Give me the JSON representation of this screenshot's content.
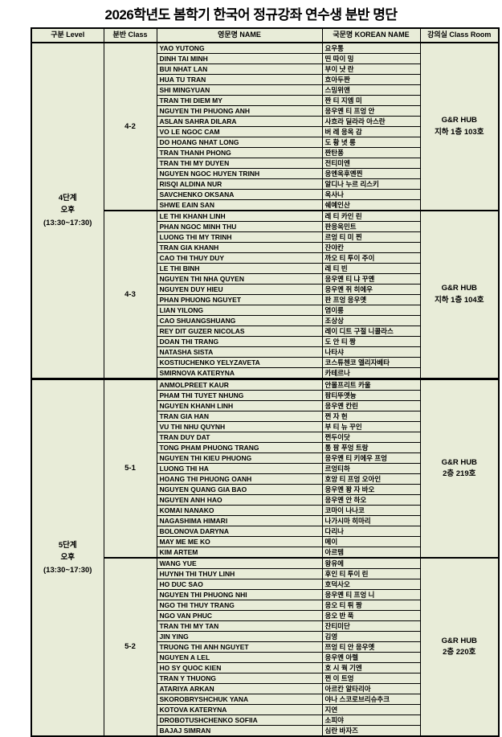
{
  "title": "2026학년도 봄학기 한국어 정규강좌 연수생 분반 명단",
  "colors": {
    "cell_background": "#e8ecd8",
    "border": "#000000",
    "text": "#000000"
  },
  "table": {
    "headers": [
      "구분 Level",
      "분반 Class",
      "영문명 NAME",
      "국문명 KOREAN NAME",
      "강의실 Class Room"
    ],
    "levels": [
      {
        "label_lines": [
          "4단계",
          "오후",
          "(13:30~17:30)"
        ],
        "classes": [
          {
            "class_label": "4-2",
            "room_lines": [
              "G&R HUB",
              "지하 1층 103호"
            ],
            "students": [
              {
                "name": "YAO YUTONG",
                "korean": "요우통"
              },
              {
                "name": "DINH TAI MINH",
                "korean": "띤 따이 밍"
              },
              {
                "name": "BUI NHAT LAN",
                "korean": "부이 냣 란"
              },
              {
                "name": "HUA TU TRAN",
                "korean": "흐아두짠"
              },
              {
                "name": "SHI MINGYUAN",
                "korean": "스밍위앤"
              },
              {
                "name": "TRAN THI DIEM MY",
                "korean": "짠 티 지엠 미"
              },
              {
                "name": "NGUYEN THI PHUONG ANH",
                "korean": "응우옌 티 프엉 안"
              },
              {
                "name": "ASLAN SAHRA DILARA",
                "korean": "사흐라 딜라라 아스란"
              },
              {
                "name": "VO LE NGOC CAM",
                "korean": "버 레 응옥 감"
              },
              {
                "name": "DO HOANG NHAT LONG",
                "korean": "도 황 녓 롱"
              },
              {
                "name": "TRAN THANH PHONG",
                "korean": "짠탄퐁"
              },
              {
                "name": "TRAN THI MY DUYEN",
                "korean": "전티미엔"
              },
              {
                "name": "NGUYEN NGOC HUYEN TRINH",
                "korean": "응엔옥후옌찐"
              },
              {
                "name": "RISQI ALDINA NUR",
                "korean": "알디나 누르 리스키"
              },
              {
                "name": "SAVCHENKO OKSANA",
                "korean": "옥사나"
              },
              {
                "name": "SHWE EAIN SAN",
                "korean": "쉐예인산"
              }
            ]
          },
          {
            "class_label": "4-3",
            "room_lines": [
              "G&R HUB",
              "지하 1층 104호"
            ],
            "students": [
              {
                "name": "LE THI KHANH LINH",
                "korean": "레 티 카인 린"
              },
              {
                "name": "PHAN NGOC MINH THU",
                "korean": "판응옥민트"
              },
              {
                "name": "LUONG THI MY TRINH",
                "korean": "르엉 티 미 찐"
              },
              {
                "name": "TRAN GIA KHANH",
                "korean": "잔야칸"
              },
              {
                "name": "CAO THI THUY DUY",
                "korean": "까오 티 투이 주이"
              },
              {
                "name": "LE THI BINH",
                "korean": "레 티 빈"
              },
              {
                "name": "NGUYEN THI NHA QUYEN",
                "korean": "응우옌 티 냐 꾸옌"
              },
              {
                "name": "NGUYEN DUY HIEU",
                "korean": "응우옌 쥐 히에우"
              },
              {
                "name": "PHAN PHUONG NGUYET",
                "korean": "판 프엉 응우옛"
              },
              {
                "name": "LIAN YILONG",
                "korean": "염이롱"
              },
              {
                "name": "CAO SHUANGSHUANG",
                "korean": "조상상"
              },
              {
                "name": "REY DIT GUZER NICOLAS",
                "korean": "레이 디트 구절 니콜라스"
              },
              {
                "name": "DOAN THI TRANG",
                "korean": "도 안 티 짱"
              },
              {
                "name": "NATASHA SISTA",
                "korean": "나타샤"
              },
              {
                "name": "KOSTIUCHENKO YELYZAVETA",
                "korean": "코스튜첸코 엘리자베타"
              },
              {
                "name": "SMIRNOVA KATERYNA",
                "korean": "카테르나"
              }
            ]
          }
        ]
      },
      {
        "label_lines": [
          "5단계",
          "오후",
          "(13:30~17:30)"
        ],
        "classes": [
          {
            "class_label": "5-1",
            "room_lines": [
              "G&R HUB",
              "2층 219호"
            ],
            "students": [
              {
                "name": "ANMOLPREET KAUR",
                "korean": "안몰프리트 카울"
              },
              {
                "name": "PHAM THI TUYET NHUNG",
                "korean": "팜티뚜옛늉"
              },
              {
                "name": "NGUYEN KHANH LINH",
                "korean": "응우옌 칸린"
              },
              {
                "name": "TRAN GIA HAN",
                "korean": "쩐 자 헌"
              },
              {
                "name": "VU THI NHU QUYNH",
                "korean": "부 티 뉴 꾸인"
              },
              {
                "name": "TRAN DUY DAT",
                "korean": "쩐두이닷"
              },
              {
                "name": "TONG PHAM PHUONG TRANG",
                "korean": "통 팜 푸엉 트랑"
              },
              {
                "name": "NGUYEN THI KIEU PHUONG",
                "korean": "응우옌 티 키에우 프엉"
              },
              {
                "name": "LUONG THI HA",
                "korean": "르엉티하"
              },
              {
                "name": "HOANG THI PHUONG OANH",
                "korean": "호앙 티 프엉 오아인"
              },
              {
                "name": "NGUYEN QUANG GIA BAO",
                "korean": "응우옌 꽝 자 바오"
              },
              {
                "name": "NGUYEN ANH HAO",
                "korean": "응우옌 안 하오"
              },
              {
                "name": "KOMAI NANAKO",
                "korean": "코마이 나나코"
              },
              {
                "name": "NAGASHIMA HIMARI",
                "korean": "나가시마 히마리"
              },
              {
                "name": "BOLONOVA DARYNA",
                "korean": "다리나"
              },
              {
                "name": "MAY ME ME KO",
                "korean": "메이"
              },
              {
                "name": "KIM ARTEM",
                "korean": "아르템"
              }
            ]
          },
          {
            "class_label": "5-2",
            "room_lines": [
              "G&R HUB",
              "2층 220호"
            ],
            "students": [
              {
                "name": "WANG YUE",
                "korean": "왕유에"
              },
              {
                "name": "HUYNH THI THUY LINH",
                "korean": "후인 티 투이 린"
              },
              {
                "name": "HO DUC SAO",
                "korean": "호덕사오"
              },
              {
                "name": "NGUYEN THI PHUONG NHI",
                "korean": "응우옌 티 프엉 니"
              },
              {
                "name": "NGO THI THUY TRANG",
                "korean": "응오 티 튀 짱"
              },
              {
                "name": "NGO VAN PHUC",
                "korean": "응오 반 푹"
              },
              {
                "name": "TRAN THI MY TAN",
                "korean": "잔티미단"
              },
              {
                "name": "JIN YING",
                "korean": "김영"
              },
              {
                "name": "TRUONG THI ANH NGUYET",
                "korean": "쯔엉 티 안 응우옛"
              },
              {
                "name": "NGUYEN A LEL",
                "korean": "응우옌 아렐"
              },
              {
                "name": "HO SY QUOC KIEN",
                "korean": "호 시 꿕 기엔"
              },
              {
                "name": "TRAN Y THUONG",
                "korean": "쩐 이 트엉"
              },
              {
                "name": "ATARIYA ARKAN",
                "korean": "아르칸 알타리아"
              },
              {
                "name": "SKOROBRYSHCHUK YANA",
                "korean": "야나 스코로브리슈추크"
              },
              {
                "name": "KOTOVA KATERYNA",
                "korean": "지연"
              },
              {
                "name": "DROBOTUSHCHENKO SOFIIA",
                "korean": "소피야"
              },
              {
                "name": "BAJAJ SIMRAN",
                "korean": "심란 바자즈"
              }
            ]
          }
        ]
      }
    ]
  }
}
